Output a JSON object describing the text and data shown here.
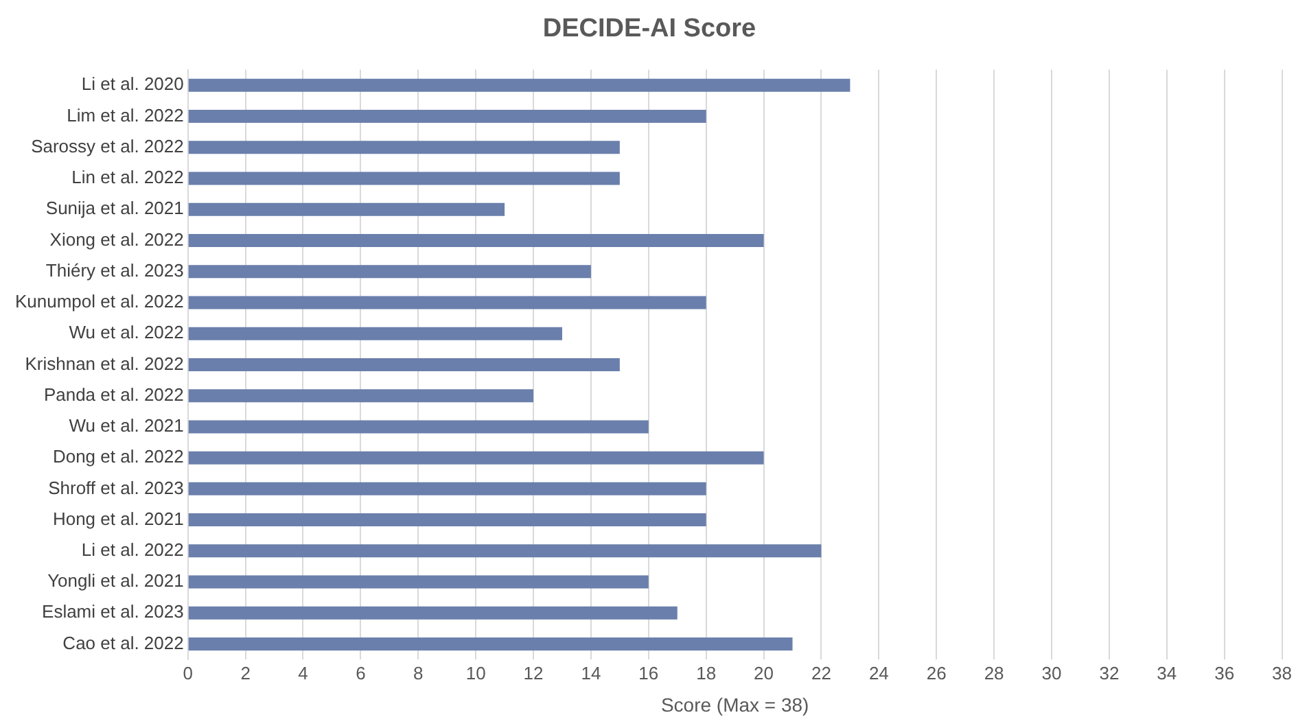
{
  "chart_data": {
    "type": "bar",
    "orientation": "horizontal",
    "title": "DECIDE-AI Score",
    "xlabel": "Score (Max = 38)",
    "categories": [
      "Li et al. 2020",
      "Lim et al. 2022",
      "Sarossy et al. 2022",
      "Lin et al. 2022",
      "Sunija et al. 2021",
      "Xiong et al. 2022",
      "Thiéry et al. 2023",
      "Kunumpol et al. 2022",
      "Wu et al. 2022",
      "Krishnan et al. 2022",
      "Panda et al. 2022",
      "Wu et al. 2021",
      "Dong et al. 2022",
      "Shroff et al. 2023",
      "Hong et al. 2021",
      "Li et al. 2022",
      "Yongli et al. 2021",
      "Eslami et al. 2023",
      "Cao et al. 2022"
    ],
    "values": [
      23,
      18,
      15,
      15,
      11,
      20,
      14,
      18,
      13,
      15,
      12,
      16,
      20,
      18,
      18,
      22,
      16,
      17,
      21
    ],
    "color": "#6a7fab",
    "xlim": [
      0,
      38
    ],
    "xticks": [
      0,
      2,
      4,
      6,
      8,
      10,
      12,
      14,
      16,
      18,
      20,
      22,
      24,
      26,
      28,
      30,
      32,
      34,
      36,
      38
    ],
    "grid": "x",
    "legend": false
  }
}
